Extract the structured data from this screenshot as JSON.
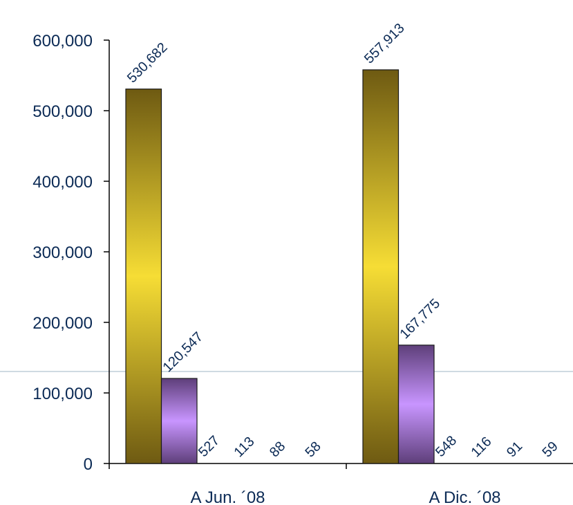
{
  "chart_data": {
    "type": "bar",
    "categories": [
      "A Jun. ´08",
      "A Dic. ´08"
    ],
    "series": [
      {
        "values": [
          530682,
          557913
        ],
        "color": "#f6dd35"
      },
      {
        "values": [
          120547,
          167775
        ],
        "color": "#c895ff"
      },
      {
        "values": [
          527,
          548
        ]
      },
      {
        "values": [
          113,
          116
        ]
      },
      {
        "values": [
          88,
          91
        ]
      },
      {
        "values": [
          58,
          59
        ]
      }
    ],
    "data_labels": [
      [
        "530,682",
        "557,913"
      ],
      [
        "120,547",
        "167,775"
      ],
      [
        "527",
        "548"
      ],
      [
        "113",
        "116"
      ],
      [
        "88",
        "91"
      ],
      [
        "58",
        "59"
      ]
    ],
    "yticks": [
      0,
      100000,
      200000,
      300000,
      400000,
      500000,
      600000
    ],
    "ytick_labels": [
      "0",
      "100,000",
      "200,000",
      "300,000",
      "400,000",
      "500,000",
      "600,000"
    ],
    "ylim": [
      0,
      600000
    ],
    "reference_line": {
      "color": "#9fb4c4"
    },
    "grid": false,
    "legend": "none"
  }
}
